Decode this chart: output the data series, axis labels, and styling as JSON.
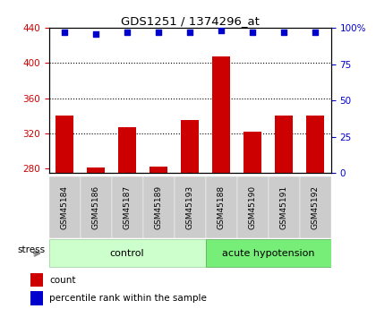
{
  "title": "GDS1251 / 1374296_at",
  "samples": [
    "GSM45184",
    "GSM45186",
    "GSM45187",
    "GSM45189",
    "GSM45193",
    "GSM45188",
    "GSM45190",
    "GSM45191",
    "GSM45192"
  ],
  "counts": [
    340,
    281,
    327,
    282,
    335,
    407,
    322,
    340,
    340
  ],
  "percentiles": [
    97,
    96,
    97,
    97,
    97,
    98,
    97,
    97,
    97
  ],
  "groups": [
    "control",
    "control",
    "control",
    "control",
    "control",
    "acute hypotension",
    "acute hypotension",
    "acute hypotension",
    "acute hypotension"
  ],
  "ylim_left": [
    275,
    440
  ],
  "ylim_right": [
    0,
    100
  ],
  "yticks_left": [
    280,
    320,
    360,
    400,
    440
  ],
  "yticks_right": [
    0,
    25,
    50,
    75,
    100
  ],
  "bar_color": "#cc0000",
  "dot_color": "#0000cc",
  "bar_baseline": 275,
  "control_color": "#ccffcc",
  "acute_color": "#77ee77",
  "sample_bg_color": "#cccccc",
  "title_color": "#000000",
  "left_tick_color": "#cc0000",
  "right_tick_color": "#0000cc",
  "grid_color": "#000000",
  "n_control": 5,
  "n_acute": 4
}
